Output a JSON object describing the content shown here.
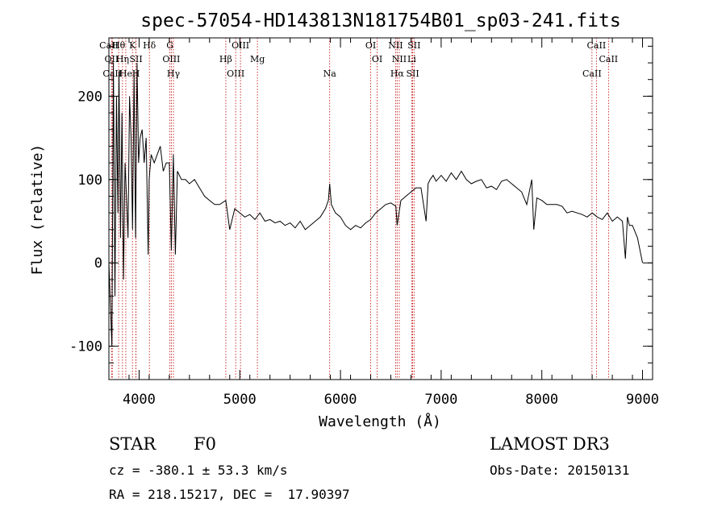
{
  "chart_data": {
    "type": "line",
    "title": "spec-57054-HD143813N181754B01_sp03-241.fits",
    "xlabel": "Wavelength (Å)",
    "ylabel": "Flux (relative)",
    "xlim": [
      3700,
      9100
    ],
    "ylim": [
      -140,
      270
    ],
    "xticks": [
      4000,
      5000,
      6000,
      7000,
      8000,
      9000
    ],
    "yticks": [
      -100,
      0,
      100,
      200
    ],
    "series": [
      {
        "name": "flux",
        "x": [
          3700,
          3730,
          3745,
          3760,
          3775,
          3790,
          3800,
          3815,
          3830,
          3845,
          3860,
          3875,
          3890,
          3905,
          3920,
          3935,
          3950,
          3965,
          3980,
          3995,
          4010,
          4030,
          4050,
          4070,
          4090,
          4100,
          4120,
          4150,
          4180,
          4210,
          4240,
          4270,
          4300,
          4320,
          4340,
          4360,
          4380,
          4420,
          4460,
          4500,
          4550,
          4600,
          4650,
          4700,
          4750,
          4800,
          4861,
          4900,
          4950,
          5000,
          5050,
          5100,
          5150,
          5200,
          5250,
          5300,
          5350,
          5400,
          5450,
          5500,
          5550,
          5600,
          5650,
          5700,
          5750,
          5800,
          5850,
          5880,
          5893,
          5910,
          5950,
          6000,
          6050,
          6100,
          6150,
          6200,
          6250,
          6300,
          6350,
          6400,
          6450,
          6500,
          6550,
          6563,
          6600,
          6650,
          6700,
          6750,
          6800,
          6850,
          6870,
          6890,
          6920,
          6950,
          7000,
          7050,
          7100,
          7150,
          7200,
          7250,
          7300,
          7350,
          7400,
          7450,
          7500,
          7550,
          7600,
          7650,
          7700,
          7750,
          7800,
          7850,
          7900,
          7920,
          7950,
          8000,
          8050,
          8100,
          8150,
          8200,
          8250,
          8300,
          8350,
          8400,
          8450,
          8500,
          8550,
          8600,
          8650,
          8700,
          8750,
          8800,
          8830,
          8850,
          8870,
          8900,
          8950,
          9000
        ],
        "values": [
          0,
          -100,
          240,
          -40,
          200,
          60,
          230,
          30,
          180,
          -20,
          120,
          80,
          30,
          200,
          150,
          40,
          230,
          30,
          240,
          120,
          150,
          160,
          120,
          150,
          10,
          100,
          130,
          120,
          130,
          140,
          110,
          120,
          120,
          15,
          130,
          10,
          110,
          100,
          100,
          95,
          100,
          90,
          80,
          75,
          70,
          70,
          75,
          40,
          65,
          60,
          55,
          58,
          52,
          60,
          50,
          52,
          48,
          50,
          45,
          48,
          42,
          50,
          40,
          45,
          50,
          55,
          65,
          75,
          95,
          70,
          60,
          55,
          45,
          40,
          45,
          42,
          48,
          52,
          60,
          65,
          70,
          72,
          68,
          45,
          75,
          80,
          85,
          90,
          90,
          50,
          95,
          100,
          105,
          98,
          105,
          98,
          108,
          100,
          110,
          100,
          95,
          98,
          100,
          90,
          92,
          88,
          98,
          100,
          95,
          90,
          85,
          70,
          100,
          40,
          78,
          75,
          70,
          70,
          70,
          68,
          60,
          62,
          60,
          58,
          55,
          60,
          55,
          52,
          60,
          50,
          55,
          50,
          5,
          55,
          45,
          45,
          30,
          0
        ]
      }
    ],
    "lines": [
      {
        "label": "CaII",
        "wl": 3700
      },
      {
        "label": "OII",
        "wl": 3727
      },
      {
        "label": "CaII",
        "wl": 3734
      },
      {
        "label": "Hθ",
        "wl": 3797
      },
      {
        "label": "Hη",
        "wl": 3835
      },
      {
        "label": "He",
        "wl": 3868
      },
      {
        "label": "K",
        "wl": 3934
      },
      {
        "label": "SII",
        "wl": 3969
      },
      {
        "label": "H",
        "wl": 3969
      },
      {
        "label": "Hδ",
        "wl": 4102
      },
      {
        "label": "OIII",
        "wl": 4320
      },
      {
        "label": "Hγ",
        "wl": 4341
      },
      {
        "label": "G",
        "wl": 4306
      },
      {
        "label": "Hβ",
        "wl": 4861
      },
      {
        "label": "OIII",
        "wl": 4959
      },
      {
        "label": "OIII",
        "wl": 5007
      },
      {
        "label": "Mg",
        "wl": 5175
      },
      {
        "label": "Na",
        "wl": 5893
      },
      {
        "label": "OI",
        "wl": 6300
      },
      {
        "label": "OI",
        "wl": 6364
      },
      {
        "label": "Hα",
        "wl": 6563
      },
      {
        "label": "NII",
        "wl": 6548
      },
      {
        "label": "NII",
        "wl": 6584
      },
      {
        "label": "SII",
        "wl": 6717
      },
      {
        "label": "SII",
        "wl": 6731
      },
      {
        "label": "Li",
        "wl": 6708
      },
      {
        "label": "CaII",
        "wl": 8498
      },
      {
        "label": "CaII",
        "wl": 8542
      },
      {
        "label": "CaII",
        "wl": 8662
      }
    ]
  },
  "info": {
    "object_class": "STAR",
    "subclass": "F0",
    "survey": "LAMOST DR3",
    "cz": "cz = -380.1 ± 53.3 km/s",
    "obs_date": "Obs-Date: 20150131",
    "coords": "RA = 218.15217, DEC =  17.90397"
  }
}
